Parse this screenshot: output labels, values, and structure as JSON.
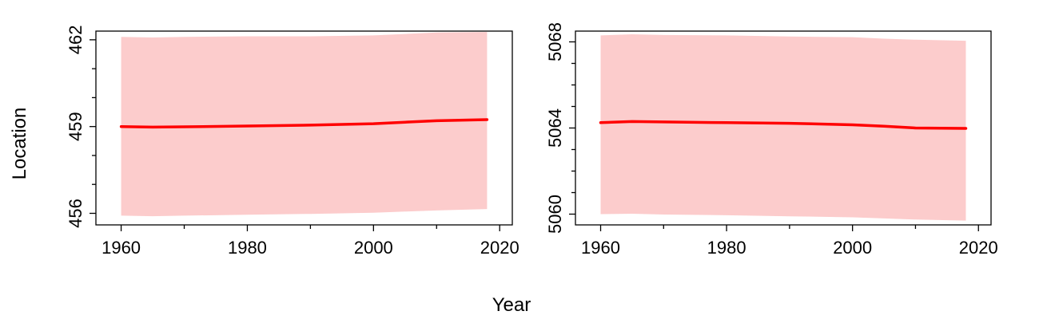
{
  "figure": {
    "xlabel": "Year",
    "ylabel": "Location"
  },
  "colors": {
    "line": "#ff0000",
    "band": "#fccccc",
    "axis": "#000000",
    "background": "#ffffff"
  },
  "chart_data": [
    {
      "type": "area",
      "panel": "left",
      "title": "",
      "xlabel": "",
      "ylabel": "",
      "xlim": [
        1956,
        2022
      ],
      "ylim": [
        455.6,
        462.3
      ],
      "xticks": [
        1960,
        1980,
        2000,
        2020
      ],
      "xminor": [
        1970,
        1990,
        2010
      ],
      "yticks": [
        456,
        459,
        462
      ],
      "yminor": [
        457,
        458,
        460,
        461
      ],
      "grid": false,
      "series": [
        {
          "role": "estimate",
          "x": [
            1960,
            1965,
            1970,
            1980,
            1990,
            2000,
            2005,
            2010,
            2018
          ],
          "y": [
            459.0,
            458.98,
            458.99,
            459.02,
            459.05,
            459.1,
            459.15,
            459.2,
            459.24
          ]
        },
        {
          "role": "lower",
          "x": [
            1960,
            1965,
            1970,
            1980,
            1990,
            2000,
            2005,
            2010,
            2018
          ],
          "y": [
            455.92,
            455.9,
            455.92,
            455.95,
            455.98,
            456.02,
            456.06,
            456.1,
            456.15
          ]
        },
        {
          "role": "upper",
          "x": [
            1960,
            1965,
            1970,
            1980,
            1990,
            2000,
            2005,
            2010,
            2018
          ],
          "y": [
            462.1,
            462.08,
            462.1,
            462.12,
            462.12,
            462.15,
            462.2,
            462.25,
            462.27
          ]
        }
      ]
    },
    {
      "type": "area",
      "panel": "right",
      "title": "",
      "xlabel": "",
      "ylabel": "",
      "xlim": [
        1956,
        2022
      ],
      "ylim": [
        5059.5,
        5068.5
      ],
      "xticks": [
        1960,
        1980,
        2000,
        2020
      ],
      "xminor": [
        1970,
        1990,
        2010
      ],
      "yticks": [
        5060,
        5064,
        5068
      ],
      "yminor": [
        5061,
        5062,
        5063,
        5065,
        5066,
        5067
      ],
      "grid": false,
      "series": [
        {
          "role": "estimate",
          "x": [
            1960,
            1965,
            1970,
            1980,
            1990,
            2000,
            2005,
            2010,
            2018
          ],
          "y": [
            5064.25,
            5064.3,
            5064.28,
            5064.25,
            5064.22,
            5064.15,
            5064.08,
            5064.0,
            5063.98
          ]
        },
        {
          "role": "lower",
          "x": [
            1960,
            1965,
            1970,
            1980,
            1990,
            2000,
            2005,
            2010,
            2018
          ],
          "y": [
            5060.0,
            5060.02,
            5059.98,
            5059.95,
            5059.9,
            5059.85,
            5059.8,
            5059.75,
            5059.7
          ]
        },
        {
          "role": "upper",
          "x": [
            1960,
            1965,
            1970,
            1980,
            1990,
            2000,
            2005,
            2010,
            2018
          ],
          "y": [
            5068.3,
            5068.35,
            5068.32,
            5068.3,
            5068.25,
            5068.22,
            5068.15,
            5068.1,
            5068.05
          ]
        }
      ]
    }
  ]
}
